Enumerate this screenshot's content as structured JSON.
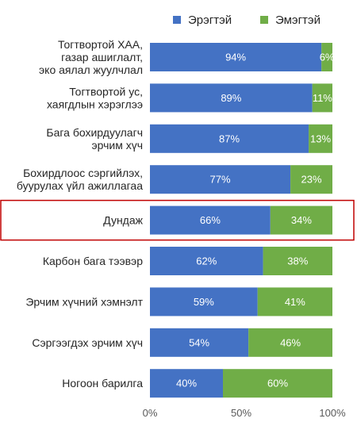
{
  "chart_data": {
    "type": "bar",
    "orientation": "horizontal",
    "stacked": true,
    "categories": [
      "Тогтвортой ХАА,\nгазар ашиглалт,\nэко аялал жуулчлал",
      "Тогтвортой ус,\nхаягдлын хэрэглээ",
      "Бага бохирдуулагч\nэрчим хүч",
      "Бохирдлоос сэргийлэх,\nбуурулах үйл ажиллагаа",
      "Дундаж",
      "Карбон бага тээвэр",
      "Эрчим хүчний хэмнэлт",
      "Сэргээгдэх эрчим хүч",
      "Ногоон барилга"
    ],
    "series": [
      {
        "name": "Эрэгтэй",
        "color": "#4472C4",
        "values": [
          94,
          89,
          87,
          77,
          66,
          62,
          59,
          54,
          40
        ],
        "labels": [
          "94%",
          "89%",
          "87%",
          "77%",
          "66%",
          "62%",
          "59%",
          "54%",
          "40%"
        ]
      },
      {
        "name": "Эмэгтэй",
        "color": "#70AD47",
        "values": [
          6,
          11,
          13,
          23,
          34,
          38,
          41,
          46,
          60
        ],
        "labels": [
          "6%",
          "11%",
          "13%",
          "23%",
          "34%",
          "38%",
          "41%",
          "46%",
          "60%"
        ]
      }
    ],
    "xlim": [
      0,
      100
    ],
    "x_ticks": [
      0,
      50,
      100
    ],
    "x_tick_labels": [
      "0%",
      "50%",
      "100%"
    ],
    "highlighted_category": "Дундаж",
    "highlight_color": "#C00000",
    "legend_position": "top",
    "grid": false
  }
}
